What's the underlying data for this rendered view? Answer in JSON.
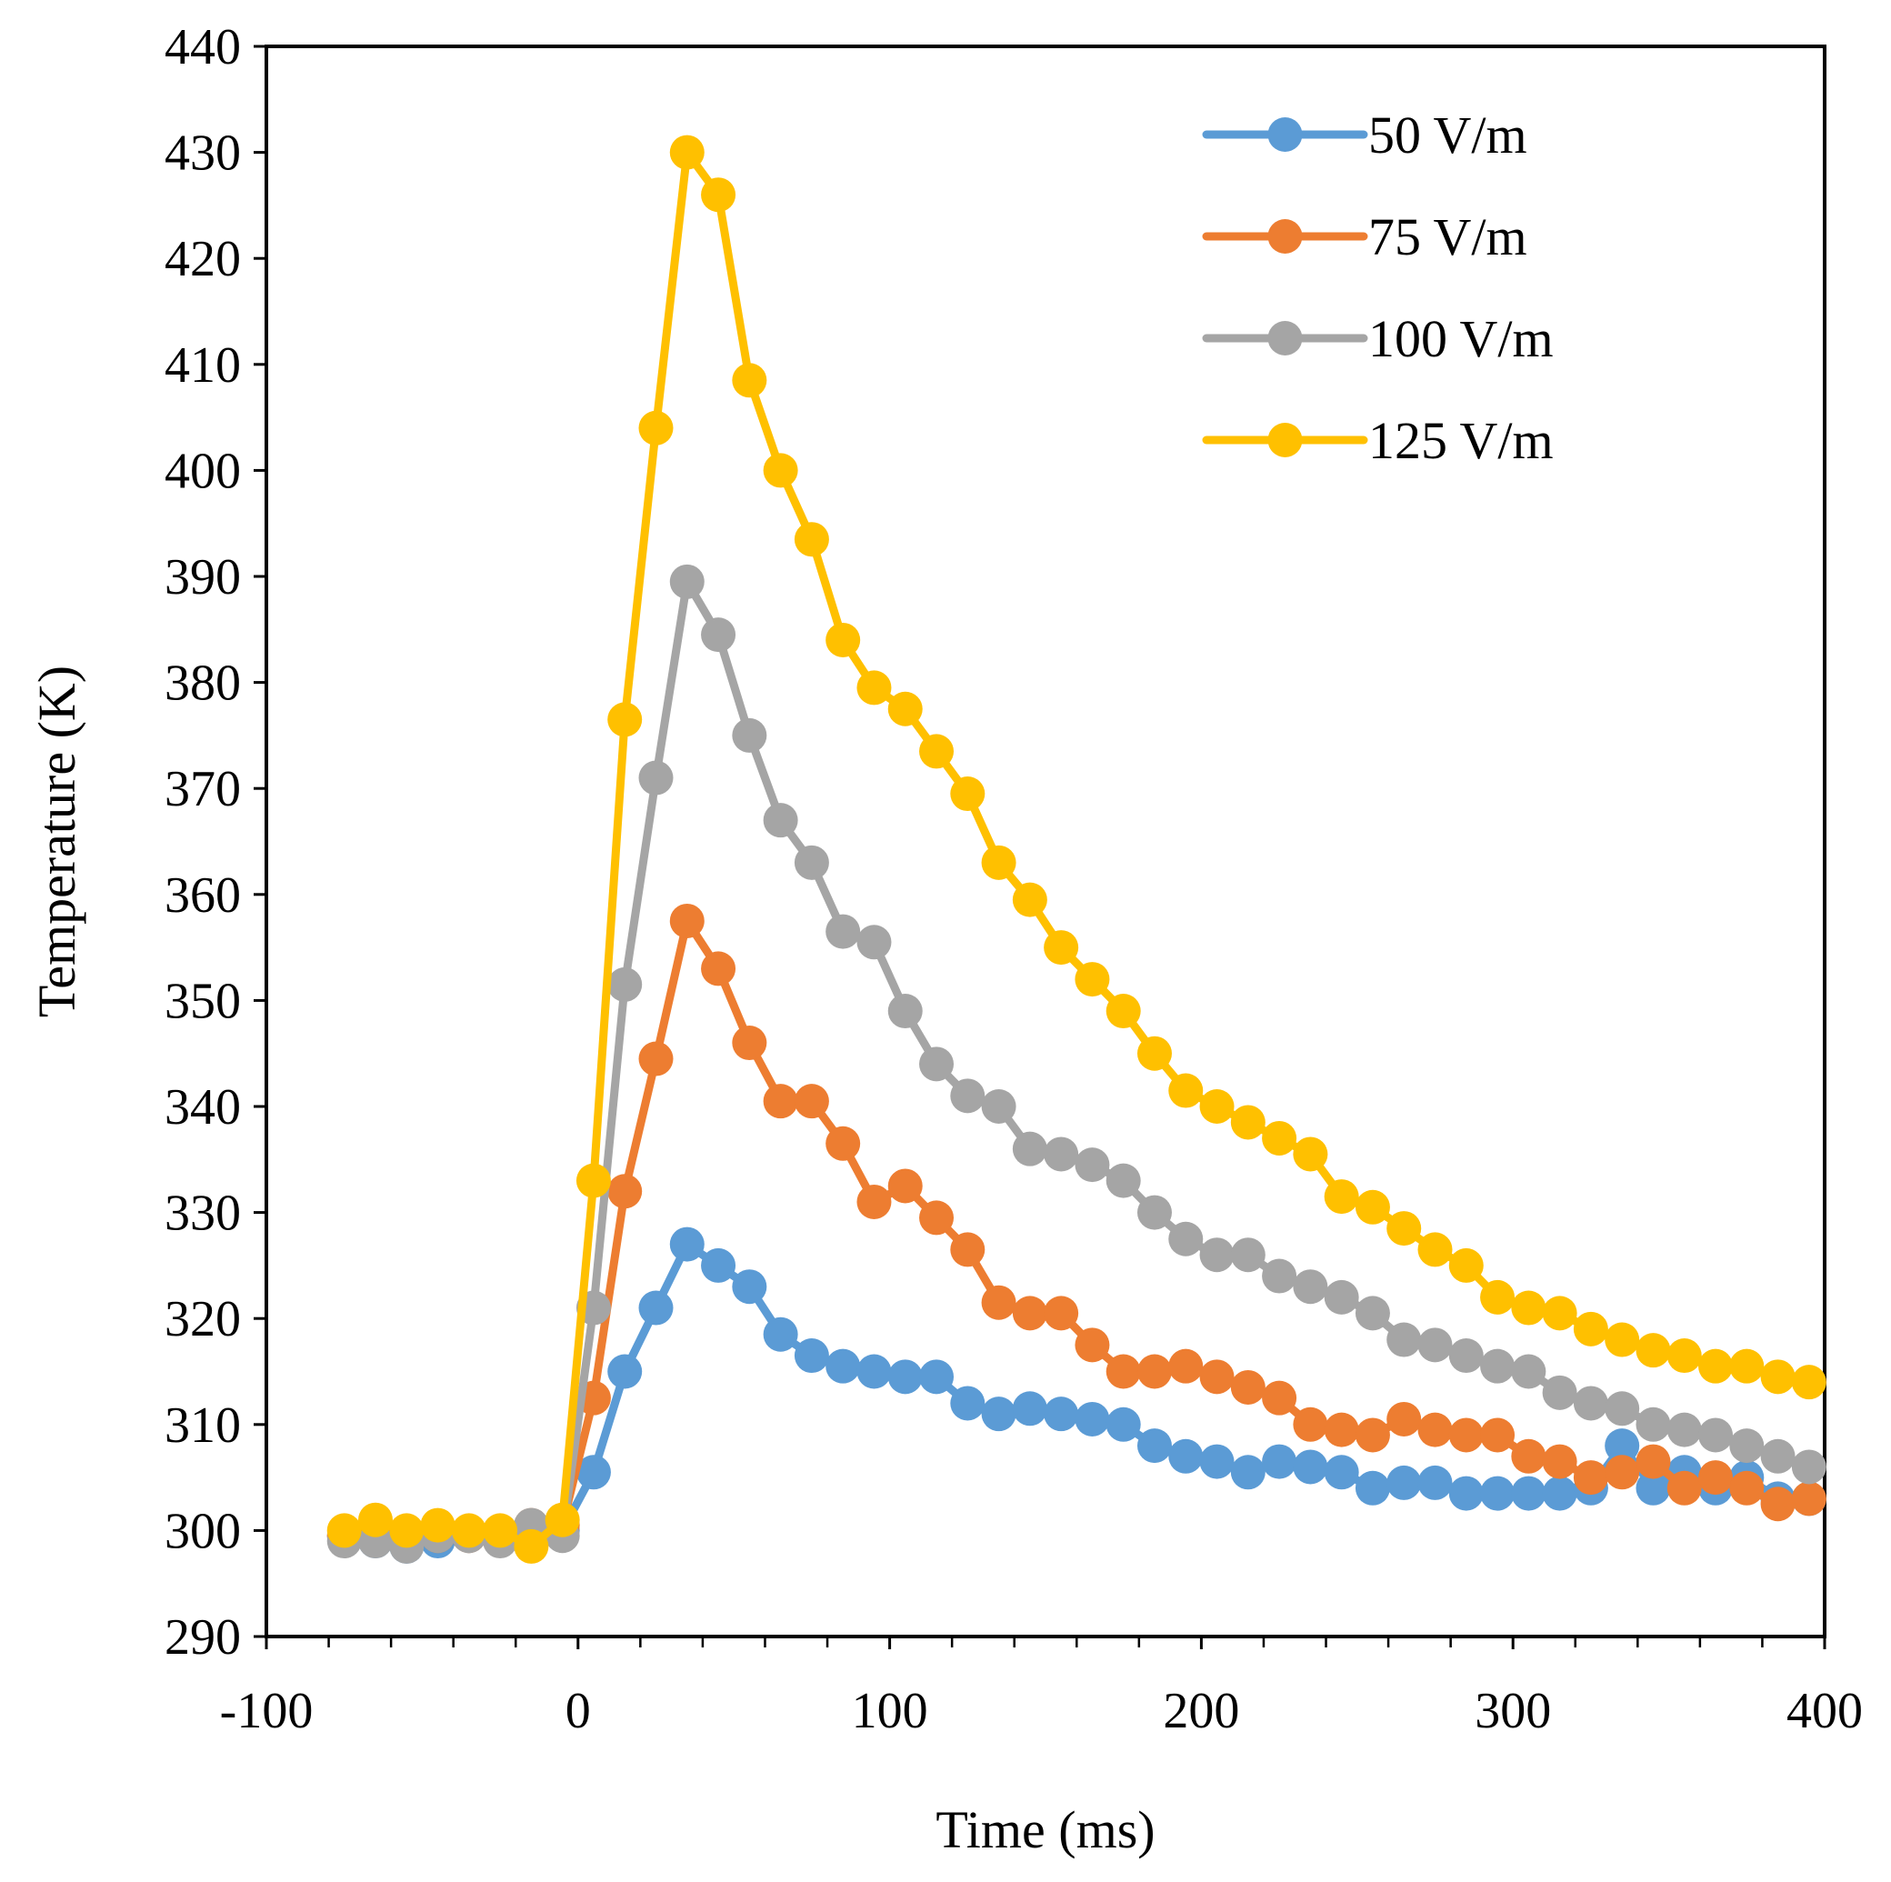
{
  "chart_data": {
    "type": "line",
    "title": "",
    "xlabel": "Time (ms)",
    "ylabel": "Temperature (K)",
    "xlim": [
      -100,
      400
    ],
    "ylim": [
      290,
      440
    ],
    "xticks": [
      -100,
      0,
      100,
      200,
      300,
      400
    ],
    "yticks": [
      290,
      300,
      310,
      320,
      330,
      340,
      350,
      360,
      370,
      380,
      390,
      400,
      410,
      420,
      430,
      440
    ],
    "grid": false,
    "legend_position": "top-right",
    "x": [
      -75,
      -65,
      -55,
      -45,
      -35,
      -25,
      -15,
      -5,
      5,
      15,
      25,
      35,
      45,
      55,
      65,
      75,
      85,
      95,
      105,
      115,
      125,
      135,
      145,
      155,
      165,
      175,
      185,
      195,
      205,
      215,
      225,
      235,
      245,
      255,
      265,
      275,
      285,
      295,
      305,
      315,
      325,
      335,
      345,
      355,
      365,
      375,
      385,
      395
    ],
    "series": [
      {
        "name": "50 V/m",
        "color": "#5b9bd5",
        "values": [
          299.5,
          299,
          298.5,
          299,
          299.5,
          299.5,
          300.5,
          300,
          305.5,
          315,
          321,
          327,
          325,
          323,
          318.5,
          316.5,
          315.5,
          315,
          314.5,
          314.5,
          312,
          311,
          311.5,
          311,
          310.5,
          310,
          308,
          307,
          306.5,
          305.5,
          306.5,
          306,
          305.5,
          304,
          304.5,
          304.5,
          303.5,
          303.5,
          303.5,
          303.5,
          304,
          308,
          304,
          305.5,
          304,
          305,
          303,
          303
        ]
      },
      {
        "name": "75 V/m",
        "color": "#ed7d31",
        "values": [
          299.5,
          299.5,
          299.5,
          299.5,
          299.5,
          299.5,
          300.5,
          300.5,
          312.5,
          332,
          344.5,
          357.5,
          353,
          346,
          340.5,
          340.5,
          336.5,
          331,
          332.5,
          329.5,
          326.5,
          321.5,
          320.5,
          320.5,
          317.5,
          315,
          315,
          315.5,
          314.5,
          313.5,
          312.5,
          310,
          309.5,
          309,
          310.5,
          309.5,
          309,
          309,
          307,
          306.5,
          305,
          305.5,
          306.5,
          304,
          305,
          304,
          302.5,
          303
        ]
      },
      {
        "name": "100 V/m",
        "color": "#a5a5a5",
        "values": [
          299,
          299,
          298.5,
          299.5,
          299.5,
          299,
          300.5,
          299.5,
          321,
          351.5,
          371,
          389.5,
          384.5,
          375,
          367,
          363,
          356.5,
          355.5,
          349,
          344,
          341,
          340,
          336,
          335.5,
          334.5,
          333,
          330,
          327.5,
          326,
          326,
          324,
          323,
          322,
          320.5,
          318,
          317.5,
          316.5,
          315.5,
          315,
          313,
          312,
          311.5,
          310,
          309.5,
          309,
          308,
          307,
          306
        ]
      },
      {
        "name": "125 V/m",
        "color": "#ffc000",
        "values": [
          300,
          301,
          300,
          300.5,
          300,
          300,
          298.5,
          301,
          333,
          376.5,
          404,
          430,
          426,
          408.5,
          400,
          393.5,
          384,
          379.5,
          377.5,
          373.5,
          369.5,
          363,
          359.5,
          355,
          352,
          349,
          345,
          341.5,
          340,
          338.5,
          337,
          335.5,
          331.5,
          330.5,
          328.5,
          326.5,
          325,
          322,
          321,
          320.5,
          319,
          318,
          317,
          316.5,
          315.5,
          315.5,
          314.5,
          314
        ]
      }
    ]
  }
}
